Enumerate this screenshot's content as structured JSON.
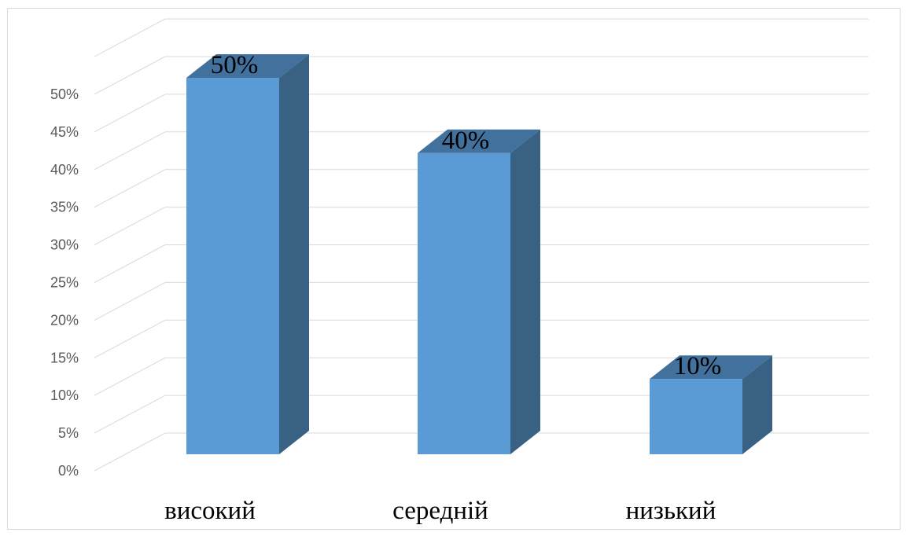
{
  "chart_data": {
    "type": "bar",
    "style": "3d-column",
    "categories": [
      "високий",
      "середній",
      "низький"
    ],
    "values": [
      50,
      40,
      10
    ],
    "data_labels": [
      "50%",
      "40%",
      "10%"
    ],
    "ylim": [
      0,
      50
    ],
    "y_ticks": [
      "0%",
      "5%",
      "10%",
      "15%",
      "20%",
      "25%",
      "30%",
      "35%",
      "40%",
      "45%",
      "50%"
    ],
    "grid": true,
    "legend": "none",
    "colors": {
      "bar_front": "#5b9bd5",
      "bar_top": "#41719c",
      "bar_side": "#386184",
      "grid": "#d9d9d9",
      "tick_text": "#595959"
    }
  }
}
